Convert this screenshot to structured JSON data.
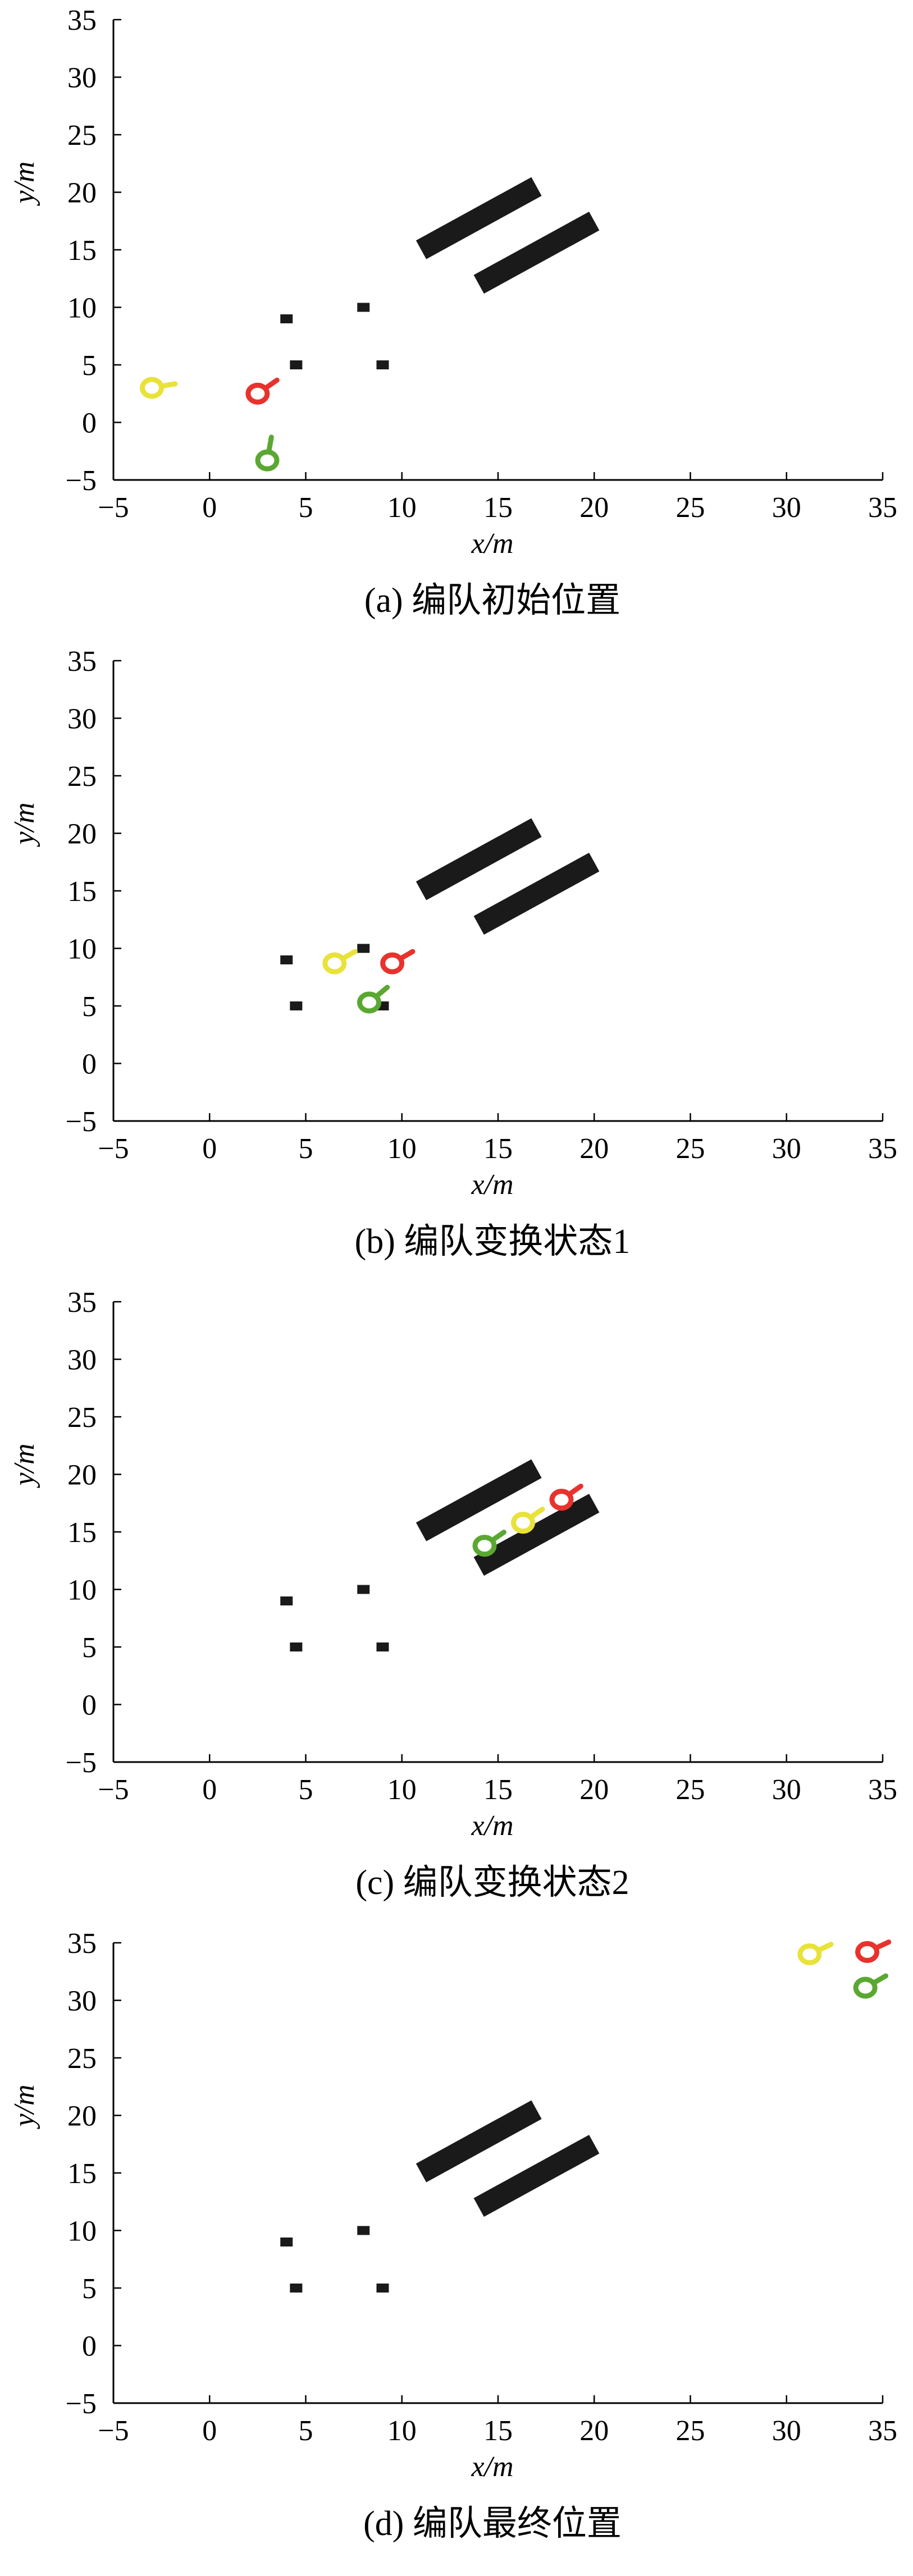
{
  "figure": {
    "colors": {
      "axis": "#000000",
      "obstacle": "#1a1a1a",
      "red": "#e8322d",
      "yellow": "#e8e23a",
      "green": "#5aa832"
    }
  },
  "chart_data": [
    {
      "type": "scatter",
      "caption": "(a) 编队初始位置",
      "xlabel": "x/m",
      "ylabel": "y/m",
      "xlim": [
        -5,
        35
      ],
      "ylim": [
        -5,
        35
      ],
      "xticks": [
        "−5",
        "0",
        "5",
        "10",
        "15",
        "20",
        "25",
        "30",
        "35"
      ],
      "yticks": [
        "−5",
        "0",
        "5",
        "10",
        "15",
        "20",
        "25",
        "30",
        "35"
      ],
      "grid": false,
      "point_obstacles": [
        [
          4,
          9
        ],
        [
          8,
          10
        ],
        [
          4.5,
          5
        ],
        [
          9,
          5
        ]
      ],
      "wall_obstacles": [
        [
          [
            11,
            15
          ],
          [
            17,
            20.5
          ]
        ],
        [
          [
            14,
            12
          ],
          [
            20,
            17.5
          ]
        ]
      ],
      "robots": [
        {
          "color": "yellow",
          "x": -3,
          "y": 3,
          "heading": 10
        },
        {
          "color": "red",
          "x": 2.5,
          "y": 2.5,
          "heading": 35
        },
        {
          "color": "green",
          "x": 3,
          "y": -3.3,
          "heading": 80
        }
      ]
    },
    {
      "type": "scatter",
      "caption": "(b) 编队变换状态1",
      "xlabel": "x/m",
      "ylabel": "y/m",
      "xlim": [
        -5,
        35
      ],
      "ylim": [
        -5,
        35
      ],
      "xticks": [
        "−5",
        "0",
        "5",
        "10",
        "15",
        "20",
        "25",
        "30",
        "35"
      ],
      "yticks": [
        "−5",
        "0",
        "5",
        "10",
        "15",
        "20",
        "25",
        "30",
        "35"
      ],
      "grid": false,
      "point_obstacles": [
        [
          4,
          9
        ],
        [
          8,
          10
        ],
        [
          4.5,
          5
        ],
        [
          9,
          5
        ]
      ],
      "wall_obstacles": [
        [
          [
            11,
            15
          ],
          [
            17,
            20.5
          ]
        ],
        [
          [
            14,
            12
          ],
          [
            20,
            17.5
          ]
        ]
      ],
      "robots": [
        {
          "color": "yellow",
          "x": 6.5,
          "y": 8.7,
          "heading": 30
        },
        {
          "color": "red",
          "x": 9.5,
          "y": 8.7,
          "heading": 30
        },
        {
          "color": "green",
          "x": 8.3,
          "y": 5.3,
          "heading": 40
        }
      ]
    },
    {
      "type": "scatter",
      "caption": "(c) 编队变换状态2",
      "xlabel": "x/m",
      "ylabel": "y/m",
      "xlim": [
        -5,
        35
      ],
      "ylim": [
        -5,
        35
      ],
      "xticks": [
        "−5",
        "0",
        "5",
        "10",
        "15",
        "20",
        "25",
        "30",
        "35"
      ],
      "yticks": [
        "−5",
        "0",
        "5",
        "10",
        "15",
        "20",
        "25",
        "30",
        "35"
      ],
      "grid": false,
      "point_obstacles": [
        [
          4,
          9
        ],
        [
          8,
          10
        ],
        [
          4.5,
          5
        ],
        [
          9,
          5
        ]
      ],
      "wall_obstacles": [
        [
          [
            11,
            15
          ],
          [
            17,
            20.5
          ]
        ],
        [
          [
            14,
            12
          ],
          [
            20,
            17.5
          ]
        ]
      ],
      "robots": [
        {
          "color": "green",
          "x": 14.3,
          "y": 13.8,
          "heading": 35
        },
        {
          "color": "yellow",
          "x": 16.3,
          "y": 15.8,
          "heading": 35
        },
        {
          "color": "red",
          "x": 18.3,
          "y": 17.8,
          "heading": 35
        }
      ]
    },
    {
      "type": "scatter",
      "caption": "(d) 编队最终位置",
      "xlabel": "x/m",
      "ylabel": "y/m",
      "xlim": [
        -5,
        35
      ],
      "ylim": [
        -5,
        35
      ],
      "xticks": [
        "−5",
        "0",
        "5",
        "10",
        "15",
        "20",
        "25",
        "30",
        "35"
      ],
      "yticks": [
        "−5",
        "0",
        "5",
        "10",
        "15",
        "20",
        "25",
        "30",
        "35"
      ],
      "grid": false,
      "point_obstacles": [
        [
          4,
          9
        ],
        [
          8,
          10
        ],
        [
          4.5,
          5
        ],
        [
          9,
          5
        ]
      ],
      "wall_obstacles": [
        [
          [
            11,
            15
          ],
          [
            17,
            20.5
          ]
        ],
        [
          [
            14,
            12
          ],
          [
            20,
            17.5
          ]
        ]
      ],
      "robots": [
        {
          "color": "yellow",
          "x": 31.2,
          "y": 34,
          "heading": 25
        },
        {
          "color": "red",
          "x": 34.2,
          "y": 34.2,
          "heading": 25
        },
        {
          "color": "green",
          "x": 34.1,
          "y": 31.1,
          "heading": 30
        }
      ]
    }
  ]
}
